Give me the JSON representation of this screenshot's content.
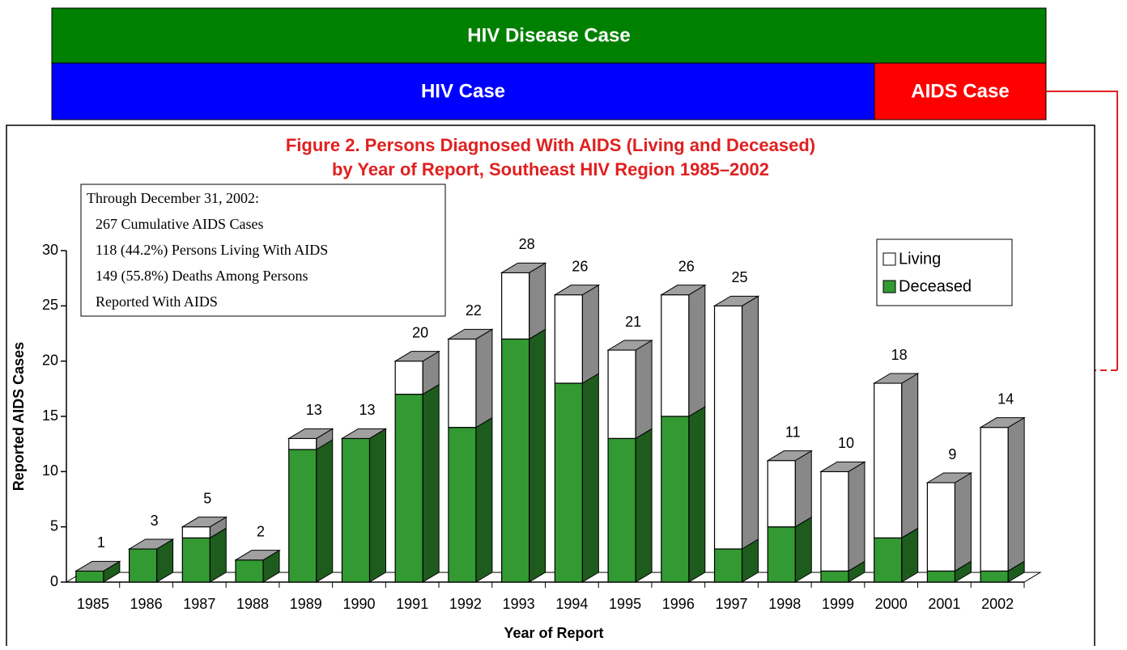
{
  "header": {
    "top": "HIV Disease Case",
    "left": "HIV Case",
    "right": "AIDS Case"
  },
  "chart_data": {
    "type": "bar",
    "stacked": true,
    "title": [
      "Figure 2. Persons Diagnosed With AIDS (Living and Deceased)",
      "by Year of Report, Southeast HIV Region 1985–2002"
    ],
    "annotation": [
      "Through December 31, 2002:",
      "267 Cumulative AIDS Cases",
      "118 (44.2%) Persons Living With AIDS",
      "149 (55.8%) Deaths Among Persons",
      "Reported With AIDS"
    ],
    "x_label": "Year of Report",
    "y_label": "Reported AIDS Cases",
    "categories": [
      "1985",
      "1986",
      "1987",
      "1988",
      "1989",
      "1990",
      "1991",
      "1992",
      "1993",
      "1994",
      "1995",
      "1996",
      "1997",
      "1998",
      "1999",
      "2000",
      "2001",
      "2002"
    ],
    "series": [
      {
        "name": "Deceased",
        "color": "#339933",
        "values": [
          1,
          3,
          4,
          2,
          12,
          13,
          17,
          14,
          22,
          18,
          13,
          15,
          3,
          5,
          1,
          4,
          1,
          1
        ]
      },
      {
        "name": "Living",
        "color": "#ffffff",
        "values": [
          0,
          0,
          1,
          0,
          1,
          0,
          3,
          8,
          6,
          8,
          8,
          11,
          22,
          6,
          9,
          14,
          8,
          13
        ]
      }
    ],
    "totals": [
      1,
      3,
      5,
      2,
      13,
      13,
      20,
      22,
      28,
      26,
      21,
      26,
      25,
      11,
      10,
      18,
      9,
      14
    ],
    "ylim": [
      0,
      30
    ],
    "yticks": [
      0,
      5,
      10,
      15,
      20,
      25,
      30
    ],
    "legend": "upper right"
  }
}
